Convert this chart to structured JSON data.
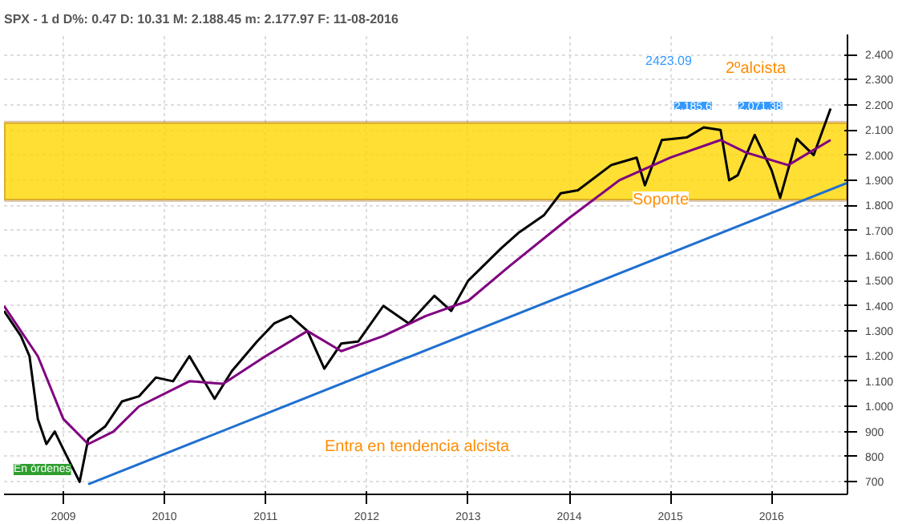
{
  "chart_data": {
    "type": "line",
    "title": "SPX - 1 d D%: 0.47 D: 10.31 M: 2.188.45 m: 2.177.97 F: 11-08-2016",
    "xlim": [
      "2008-06",
      "2016-10"
    ],
    "xticks": [
      "2009",
      "2010",
      "2011",
      "2012",
      "2013",
      "2014",
      "2015",
      "2016"
    ],
    "ylim": [
      650,
      2480
    ],
    "yticks": [
      {
        "value": 700,
        "label": "700"
      },
      {
        "value": 800,
        "label": "800"
      },
      {
        "value": 900,
        "label": "900"
      },
      {
        "value": 1000,
        "label": "1.000"
      },
      {
        "value": 1100,
        "label": "1.100"
      },
      {
        "value": 1200,
        "label": "1.200"
      },
      {
        "value": 1300,
        "label": "1.300"
      },
      {
        "value": 1400,
        "label": "1.400"
      },
      {
        "value": 1500,
        "label": "1.500"
      },
      {
        "value": 1600,
        "label": "1.600"
      },
      {
        "value": 1700,
        "label": "1.700"
      },
      {
        "value": 1800,
        "label": "1.800"
      },
      {
        "value": 1900,
        "label": "1.900"
      },
      {
        "value": 2000,
        "label": "2.000"
      },
      {
        "value": 2100,
        "label": "2.100"
      },
      {
        "value": 2200,
        "label": "2.200"
      },
      {
        "value": 2300,
        "label": "2.300"
      },
      {
        "value": 2400,
        "label": "2.400"
      }
    ],
    "grid": true,
    "series": [
      {
        "color": "#000000",
        "x": [
          "2008-06",
          "2008-08",
          "2008-09",
          "2008-10",
          "2008-11",
          "2008-12",
          "2009-01",
          "2009-03",
          "2009-04",
          "2009-06",
          "2009-08",
          "2009-10",
          "2009-12",
          "2010-02",
          "2010-04",
          "2010-07",
          "2010-09",
          "2010-12",
          "2011-02",
          "2011-04",
          "2011-06",
          "2011-08",
          "2011-10",
          "2011-12",
          "2012-03",
          "2012-06",
          "2012-09",
          "2012-11",
          "2013-01",
          "2013-05",
          "2013-07",
          "2013-10",
          "2013-12",
          "2014-02",
          "2014-06",
          "2014-09",
          "2014-10",
          "2014-12",
          "2015-03",
          "2015-05",
          "2015-07",
          "2015-08",
          "2015-09",
          "2015-11",
          "2016-01",
          "2016-02",
          "2016-04",
          "2016-06",
          "2016-08"
        ],
        "values": [
          1380,
          1280,
          1200,
          950,
          850,
          900,
          830,
          700,
          870,
          920,
          1020,
          1040,
          1115,
          1100,
          1200,
          1030,
          1140,
          1258,
          1330,
          1360,
          1300,
          1150,
          1250,
          1258,
          1400,
          1330,
          1440,
          1380,
          1500,
          1630,
          1690,
          1760,
          1848,
          1860,
          1960,
          1990,
          1880,
          2060,
          2070,
          2110,
          2100,
          1900,
          1920,
          2080,
          1940,
          1830,
          2065,
          2000,
          2185
        ]
      },
      {
        "color": "#800080",
        "x": [
          "2008-06",
          "2008-10",
          "2009-01",
          "2009-04",
          "2009-07",
          "2009-10",
          "2010-04",
          "2010-08",
          "2011-01",
          "2011-06",
          "2011-10",
          "2012-03",
          "2012-08",
          "2013-01",
          "2013-06",
          "2014-01",
          "2014-07",
          "2015-01",
          "2015-07",
          "2015-10",
          "2016-03",
          "2016-08"
        ],
        "values": [
          1400,
          1200,
          950,
          850,
          900,
          1000,
          1100,
          1090,
          1200,
          1300,
          1220,
          1280,
          1360,
          1420,
          1560,
          1750,
          1900,
          1990,
          2060,
          2010,
          1960,
          2060
        ]
      },
      {
        "color": "#1f6fd0",
        "x": [
          "2009-04",
          "2016-10"
        ],
        "values": [
          690,
          1890
        ]
      }
    ],
    "bands": [
      {
        "axis": "y",
        "from": 1820,
        "to": 2130,
        "color": "#ffd700"
      }
    ],
    "annotations": [
      "Entra en tendencia alcista",
      "Soporte",
      "2ºalcista",
      "2423.09",
      "2.185,6",
      "2.071,38",
      "En órdenes"
    ]
  }
}
